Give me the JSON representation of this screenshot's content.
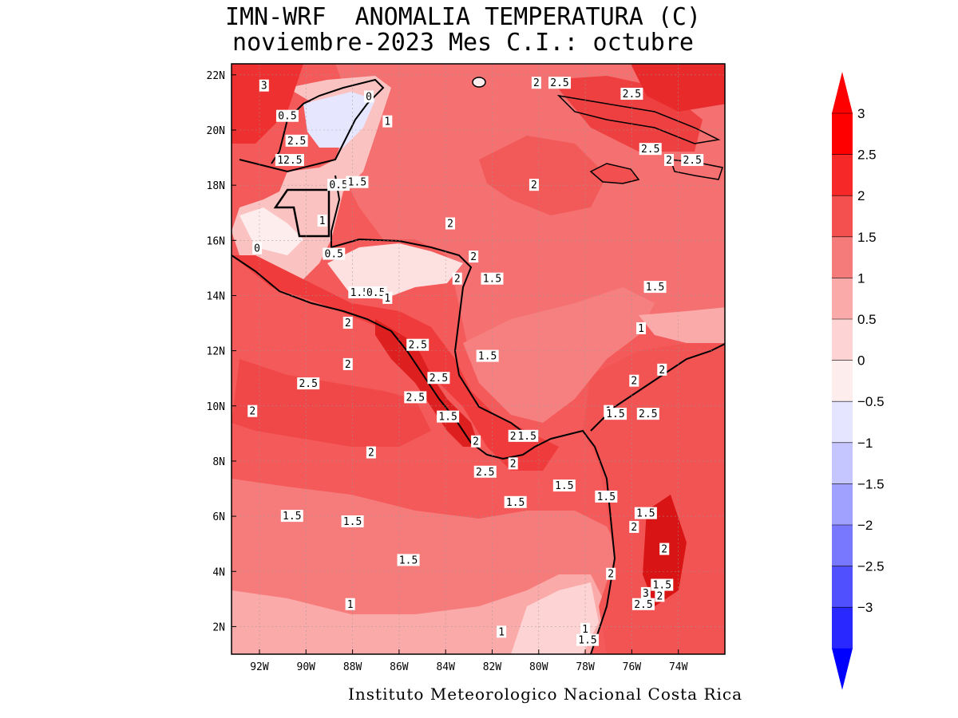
{
  "title_line1": "IMN-WRF  ANOMALIA TEMPERATURA (C)",
  "title_line2": "noviembre-2023 Mes C.I.: octubre",
  "footer": "Instituto Meteorologico Nacional Costa Rica",
  "map_data": {
    "lon_range": [
      -93.2,
      -72.0
    ],
    "lat_range": [
      1.0,
      22.4
    ],
    "lon_ticks": [
      "92W",
      "90W",
      "88W",
      "86W",
      "84W",
      "82W",
      "80W",
      "78W",
      "76W",
      "74W"
    ],
    "lat_ticks": [
      "22N",
      "20N",
      "18N",
      "16N",
      "14N",
      "12N",
      "10N",
      "8N",
      "6N",
      "4N",
      "2N"
    ],
    "grid": true,
    "contour_labels": [
      {
        "t": "3",
        "lon": -91.8,
        "lat": 21.6
      },
      {
        "t": "0",
        "lon": -87.3,
        "lat": 21.2
      },
      {
        "t": "0.5",
        "lon": -90.8,
        "lat": 20.5
      },
      {
        "t": "1",
        "lon": -86.5,
        "lat": 20.3
      },
      {
        "t": "2.5",
        "lon": -90.4,
        "lat": 19.6
      },
      {
        "t": "12.5",
        "lon": -90.7,
        "lat": 18.9
      },
      {
        "t": "0.5",
        "lon": -88.6,
        "lat": 18.0
      },
      {
        "t": "1.5",
        "lon": -87.8,
        "lat": 18.1
      },
      {
        "t": "1",
        "lon": -89.3,
        "lat": 16.7
      },
      {
        "t": "0",
        "lon": -92.1,
        "lat": 15.7
      },
      {
        "t": "0.5",
        "lon": -88.8,
        "lat": 15.5
      },
      {
        "t": "1.5",
        "lon": -87.7,
        "lat": 14.1
      },
      {
        "t": "0.5",
        "lon": -87.0,
        "lat": 14.1
      },
      {
        "t": "1",
        "lon": -86.5,
        "lat": 13.9
      },
      {
        "t": "2",
        "lon": -88.2,
        "lat": 13.0
      },
      {
        "t": "2",
        "lon": -88.2,
        "lat": 11.5
      },
      {
        "t": "2.5",
        "lon": -89.9,
        "lat": 10.8
      },
      {
        "t": "2",
        "lon": -92.3,
        "lat": 9.8
      },
      {
        "t": "2.5",
        "lon": -85.2,
        "lat": 12.2
      },
      {
        "t": "2.5",
        "lon": -84.3,
        "lat": 11.0
      },
      {
        "t": "2.5",
        "lon": -85.3,
        "lat": 10.3
      },
      {
        "t": "1.5",
        "lon": -83.9,
        "lat": 9.6
      },
      {
        "t": "2",
        "lon": -82.7,
        "lat": 8.7
      },
      {
        "t": "2",
        "lon": -81.1,
        "lat": 8.9
      },
      {
        "t": "1.5",
        "lon": -80.5,
        "lat": 8.9
      },
      {
        "t": "2",
        "lon": -81.1,
        "lat": 7.9
      },
      {
        "t": "2.5",
        "lon": -82.3,
        "lat": 7.6
      },
      {
        "t": "2",
        "lon": -87.2,
        "lat": 8.3
      },
      {
        "t": "1.5",
        "lon": -90.6,
        "lat": 6.0
      },
      {
        "t": "1.5",
        "lon": -88.0,
        "lat": 5.8
      },
      {
        "t": "1.5",
        "lon": -85.6,
        "lat": 4.4
      },
      {
        "t": "1",
        "lon": -88.1,
        "lat": 2.8
      },
      {
        "t": "1.5",
        "lon": -81.0,
        "lat": 6.5
      },
      {
        "t": "1",
        "lon": -81.6,
        "lat": 1.8
      },
      {
        "t": "1",
        "lon": -78.0,
        "lat": 1.9
      },
      {
        "t": "1.5",
        "lon": -77.9,
        "lat": 1.5
      },
      {
        "t": "1.5",
        "lon": -77.1,
        "lat": 6.7
      },
      {
        "t": "1.5",
        "lon": -82.0,
        "lat": 14.6
      },
      {
        "t": "2",
        "lon": -83.5,
        "lat": 14.6
      },
      {
        "t": "2",
        "lon": -82.8,
        "lat": 15.4
      },
      {
        "t": "2",
        "lon": -83.8,
        "lat": 16.6
      },
      {
        "t": "2",
        "lon": -80.2,
        "lat": 18.0
      },
      {
        "t": "2",
        "lon": -80.1,
        "lat": 21.7
      },
      {
        "t": "2.5",
        "lon": -79.1,
        "lat": 21.7
      },
      {
        "t": "2.5",
        "lon": -76.0,
        "lat": 21.3
      },
      {
        "t": "2.5",
        "lon": -75.2,
        "lat": 19.3
      },
      {
        "t": "2",
        "lon": -74.4,
        "lat": 18.9
      },
      {
        "t": "2.5",
        "lon": -73.4,
        "lat": 18.9
      },
      {
        "t": "1.5",
        "lon": -75.0,
        "lat": 14.3
      },
      {
        "t": "1",
        "lon": -75.6,
        "lat": 12.8
      },
      {
        "t": "1.5",
        "lon": -82.2,
        "lat": 11.8
      },
      {
        "t": "2",
        "lon": -74.7,
        "lat": 11.3
      },
      {
        "t": "2",
        "lon": -75.9,
        "lat": 10.9
      },
      {
        "t": "1",
        "lon": -77.0,
        "lat": 9.8
      },
      {
        "t": "1.5",
        "lon": -76.7,
        "lat": 9.7
      },
      {
        "t": "2.5",
        "lon": -75.3,
        "lat": 9.7
      },
      {
        "t": "1.5",
        "lon": -78.9,
        "lat": 7.1
      },
      {
        "t": "1.5",
        "lon": -75.4,
        "lat": 6.1
      },
      {
        "t": "2",
        "lon": -75.9,
        "lat": 5.6
      },
      {
        "t": "2",
        "lon": -74.6,
        "lat": 4.8
      },
      {
        "t": "2",
        "lon": -76.9,
        "lat": 3.9
      },
      {
        "t": "1.5",
        "lon": -74.7,
        "lat": 3.5
      },
      {
        "t": "3",
        "lon": -75.4,
        "lat": 3.2
      },
      {
        "t": "2",
        "lon": -74.8,
        "lat": 3.1
      },
      {
        "t": "2.5",
        "lon": -75.5,
        "lat": 2.8
      }
    ]
  },
  "colorbar": {
    "levels": [
      "3",
      "2.5",
      "2",
      "1.5",
      "1",
      "0.5",
      "0",
      "−0.5",
      "−1",
      "−1.5",
      "−2",
      "−2.5",
      "−3"
    ],
    "colors": {
      "c_3": "#ff0000",
      "c_2_5": "#f72828",
      "c_2": "#f45050",
      "c_1_5": "#f57b7b",
      "c_1": "#fbaaaa",
      "c_0_5": "#fdd3d3",
      "c_0": "#fdeded",
      "c_m0_5": "#e5e5ff",
      "c_m1": "#c5c5ff",
      "c_m1_5": "#a0a0ff",
      "c_m2": "#7878ff",
      "c_m2_5": "#5050ff",
      "c_m3": "#2828ff",
      "c_min": "#0000ff"
    }
  }
}
